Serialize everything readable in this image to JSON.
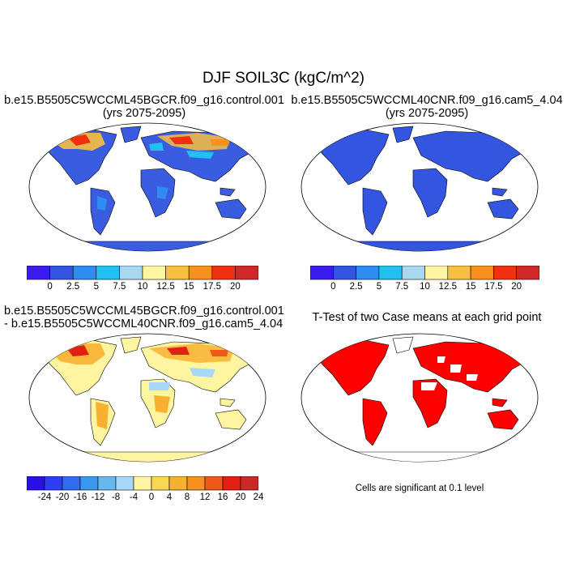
{
  "main_title": "DJF SOIL3C (kgC/m^2)",
  "panels": {
    "top_left": {
      "title_line1": "b.e15.B5505C5WCCML45BGCR.f09_g16.control.001",
      "title_line2": "(yrs 2075-2095)"
    },
    "top_right": {
      "title_line1": "b.e15.B5505C5WCCML40CNR.f09_g16.cam5_4.04",
      "title_line2": "(yrs 2075-2095)"
    },
    "bottom_left": {
      "title_line1": "b.e15.B5505C5WCCML45BGCR.f09_g16.control.001",
      "title_line2": "- b.e15.B5505C5WCCML40CNR.f09_g16.cam5_4.04"
    },
    "bottom_right": {
      "title_line1": "T-Test of two Case means at each grid point",
      "note": "Cells are significant at 0.1 level"
    }
  },
  "colorbars": {
    "absolute": {
      "colors": [
        "#3a1cf0",
        "#3355e0",
        "#2f8cf0",
        "#22c0f0",
        "#a8d8f0",
        "#fff5a0",
        "#f8c040",
        "#f89020",
        "#f03010",
        "#d02828"
      ],
      "labels": [
        "0",
        "2.5",
        "5",
        "7.5",
        "10",
        "12.5",
        "15",
        "17.5",
        "20"
      ]
    },
    "difference": {
      "colors": [
        "#2a10e8",
        "#2f3ef0",
        "#2f6cf0",
        "#3a98f0",
        "#68b8f0",
        "#a8d8f8",
        "#fff5a0",
        "#f8d850",
        "#f8b030",
        "#f89020",
        "#f05a18",
        "#e02010",
        "#cc2828"
      ],
      "labels": [
        "-24",
        "-20",
        "-16",
        "-12",
        "-8",
        "-4",
        "0",
        "4",
        "8",
        "12",
        "16",
        "20",
        "24"
      ]
    },
    "ttest_color": "#ff0000"
  }
}
